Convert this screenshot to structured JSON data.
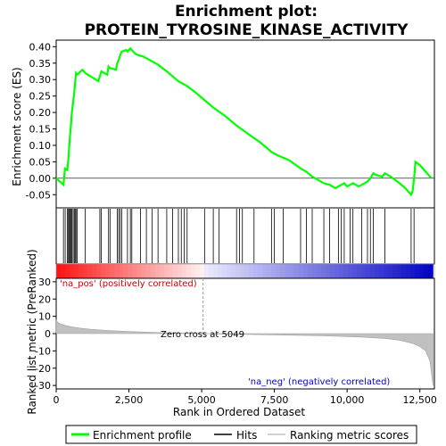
{
  "chart_data": {
    "type": "line",
    "title_lines": [
      "Enrichment plot:",
      "PROTEIN_TYROSINE_KINASE_ACTIVITY"
    ],
    "top_panel": {
      "ylabel": "Enrichment score (ES)",
      "ylim": [
        -0.09,
        0.42
      ],
      "yticks": [
        -0.05,
        0.0,
        0.05,
        0.1,
        0.15,
        0.2,
        0.25,
        0.3,
        0.35,
        0.4
      ],
      "ytick_labels": [
        "-0.05",
        "0.00",
        "0.05",
        "0.10",
        "0.15",
        "0.20",
        "0.25",
        "0.30",
        "0.35",
        "0.40"
      ],
      "series": [
        {
          "name": "Enrichment profile",
          "color": "#00ff00",
          "x": [
            0,
            250,
            300,
            380,
            420,
            450,
            480,
            510,
            540,
            580,
            620,
            650,
            680,
            720,
            900,
            1000,
            1450,
            1500,
            1550,
            1750,
            1800,
            1850,
            2050,
            2100,
            2150,
            2200,
            2250,
            2400,
            2450,
            2500,
            2550,
            2600,
            2700,
            2800,
            3000,
            3200,
            3500,
            3800,
            4000,
            4200,
            4500,
            4800,
            5000,
            5400,
            5800,
            6200,
            6600,
            7000,
            7400,
            7600,
            8000,
            8400,
            8600,
            8800,
            9000,
            9200,
            9400,
            9500,
            9600,
            9700,
            9800,
            9900,
            10000,
            10100,
            10200,
            10300,
            10400,
            10500,
            10600,
            10700,
            10800,
            10900,
            11000,
            11200,
            11300,
            11500,
            11800,
            12000,
            12200,
            12250,
            12300,
            12350,
            12500,
            12700,
            12900
          ],
          "y": [
            0.0,
            -0.02,
            0.03,
            0.025,
            0.06,
            0.1,
            0.135,
            0.165,
            0.2,
            0.23,
            0.26,
            0.29,
            0.32,
            0.315,
            0.33,
            0.32,
            0.295,
            0.31,
            0.325,
            0.315,
            0.34,
            0.335,
            0.33,
            0.35,
            0.36,
            0.375,
            0.385,
            0.39,
            0.385,
            0.39,
            0.395,
            0.39,
            0.38,
            0.375,
            0.37,
            0.36,
            0.345,
            0.325,
            0.31,
            0.295,
            0.28,
            0.26,
            0.245,
            0.215,
            0.19,
            0.16,
            0.135,
            0.11,
            0.08,
            0.07,
            0.055,
            0.03,
            0.02,
            0.005,
            -0.005,
            -0.015,
            -0.02,
            -0.025,
            -0.03,
            -0.025,
            -0.02,
            -0.015,
            -0.025,
            -0.02,
            -0.015,
            -0.02,
            -0.025,
            -0.02,
            -0.015,
            -0.01,
            0.0,
            0.015,
            0.01,
            0.005,
            0.015,
            0.005,
            -0.015,
            -0.03,
            -0.05,
            -0.04,
            0.0,
            0.05,
            0.04,
            0.02,
            0.0
          ]
        }
      ],
      "hits": [
        250,
        310,
        380,
        420,
        450,
        480,
        510,
        540,
        580,
        620,
        650,
        680,
        720,
        1000,
        1500,
        1550,
        1800,
        1850,
        2100,
        2150,
        2200,
        2250,
        2450,
        2550,
        2600,
        2900,
        3100,
        3300,
        3500,
        3800,
        4000,
        4200,
        4300,
        4400,
        4500,
        5100,
        5400,
        5600,
        6200,
        6300,
        6400,
        6800,
        7400,
        7500,
        7800,
        8400,
        8600,
        8800,
        9200,
        9400,
        9700,
        9800,
        9900,
        10100,
        10200,
        10500,
        10700,
        10800,
        10900,
        11300,
        12200,
        12300
      ]
    },
    "colorbar": {
      "label_pos": "'na_pos' (positively correlated)",
      "label_neg": "'na_neg' (negatively correlated)",
      "zero_cross_label": "Zero cross at 5049",
      "zero_cross": 5049
    },
    "bottom_panel": {
      "ylabel": "Ranked list metric (PreRanked)",
      "xlabel": "Rank in Ordered Dataset",
      "ylim": [
        -32,
        32
      ],
      "yticks": [
        -30,
        -20,
        -10,
        0,
        10,
        20,
        30
      ],
      "ytick_labels": [
        "-30",
        "-20",
        "-10",
        "0",
        "10",
        "20",
        "30"
      ],
      "x": [
        0,
        50,
        150,
        300,
        500,
        800,
        1200,
        1800,
        2500,
        3500,
        4500,
        5049,
        6000,
        7500,
        9000,
        10500,
        11300,
        11800,
        12100,
        12300,
        12500,
        12700,
        12850,
        12950
      ],
      "y": [
        8.0,
        6.5,
        5.5,
        4.8,
        4.0,
        3.2,
        2.5,
        1.8,
        1.2,
        0.6,
        0.2,
        0.0,
        -0.3,
        -0.7,
        -1.2,
        -2.0,
        -2.8,
        -3.8,
        -5.0,
        -6.0,
        -7.5,
        -10.0,
        -16.0,
        -30.0
      ]
    },
    "x_axis": {
      "xlim": [
        0,
        13000
      ],
      "xticks": [
        0,
        2500,
        5000,
        7500,
        10000,
        12500
      ],
      "xtick_labels": [
        "0",
        "2,500",
        "5,000",
        "7,500",
        "10,000",
        "12,500"
      ]
    },
    "legend": {
      "placement": "bottom",
      "entries": [
        {
          "label": "Enrichment profile",
          "color": "#00ff00"
        },
        {
          "label": "Hits",
          "color": "#000000"
        },
        {
          "label": "Ranking metric scores",
          "color": "#c0c0c0"
        }
      ]
    }
  }
}
